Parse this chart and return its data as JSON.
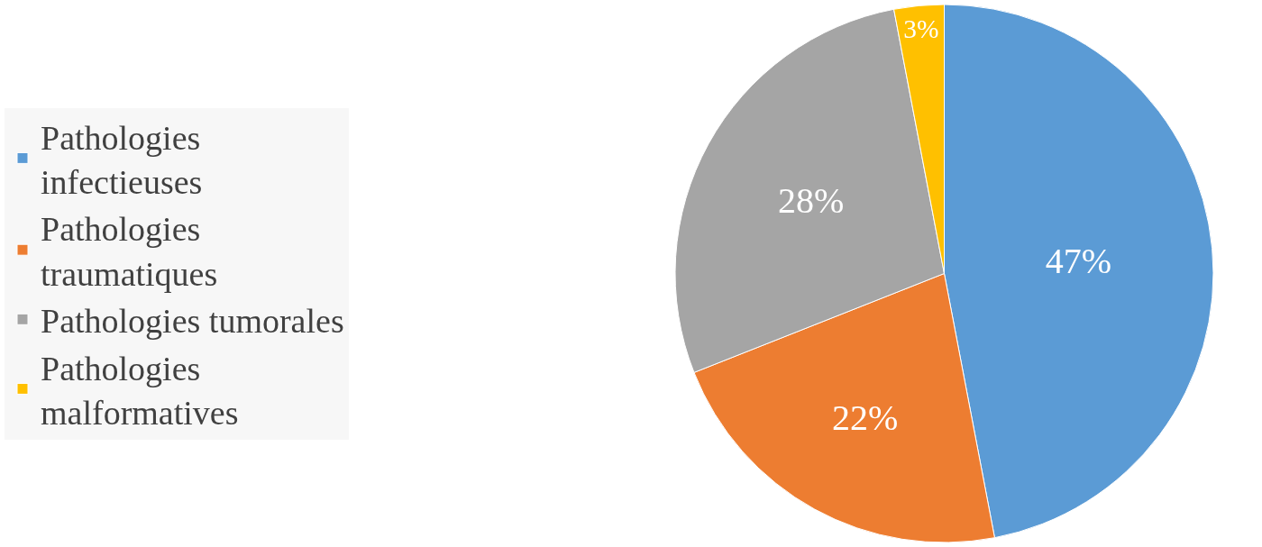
{
  "chart_data": {
    "type": "pie",
    "categories": [
      "Pathologies infectieuses",
      "Pathologies traumatiques",
      "Pathologies tumorales",
      "Pathologies malformatives"
    ],
    "values": [
      47,
      22,
      28,
      3
    ],
    "value_labels": [
      "47%",
      "22%",
      "28%",
      "3%"
    ],
    "colors": [
      "#5b9bd5",
      "#ed7d31",
      "#a5a5a5",
      "#ffc000"
    ],
    "legend": "left"
  }
}
